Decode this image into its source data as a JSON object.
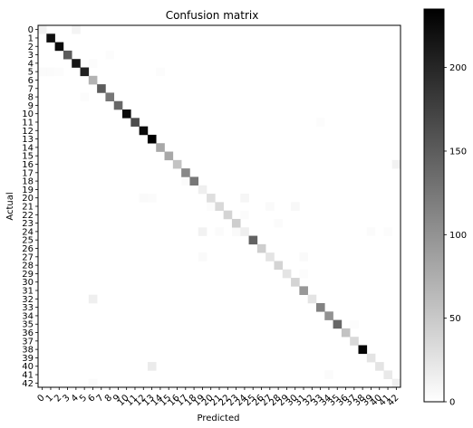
{
  "chart_data": {
    "type": "heatmap",
    "title": "Confusion matrix",
    "xlabel": "Predicted",
    "ylabel": "Actual",
    "labels": [
      "0",
      "1",
      "2",
      "3",
      "4",
      "5",
      "6",
      "7",
      "8",
      "9",
      "10",
      "11",
      "12",
      "13",
      "14",
      "15",
      "16",
      "17",
      "18",
      "19",
      "20",
      "21",
      "22",
      "23",
      "24",
      "25",
      "26",
      "27",
      "28",
      "29",
      "30",
      "31",
      "32",
      "33",
      "34",
      "35",
      "36",
      "37",
      "38",
      "39",
      "40",
      "41",
      "42"
    ],
    "diagonal": [
      12,
      220,
      225,
      150,
      215,
      205,
      70,
      150,
      125,
      140,
      225,
      165,
      225,
      235,
      80,
      80,
      55,
      110,
      125,
      15,
      30,
      35,
      40,
      45,
      15,
      145,
      45,
      25,
      40,
      25,
      40,
      95,
      25,
      115,
      100,
      140,
      55,
      35,
      230,
      25,
      25,
      20,
      15
    ],
    "off_diagonal": [
      {
        "actual": 0,
        "predicted": 4,
        "value": 10
      },
      {
        "actual": 5,
        "predicted": 0,
        "value": 4
      },
      {
        "actual": 5,
        "predicted": 1,
        "value": 4
      },
      {
        "actual": 5,
        "predicted": 2,
        "value": 3
      },
      {
        "actual": 5,
        "predicted": 14,
        "value": 3
      },
      {
        "actual": 4,
        "predicted": 6,
        "value": 3
      },
      {
        "actual": 8,
        "predicted": 5,
        "value": 3
      },
      {
        "actual": 3,
        "predicted": 8,
        "value": 3
      },
      {
        "actual": 16,
        "predicted": 42,
        "value": 12
      },
      {
        "actual": 20,
        "predicted": 12,
        "value": 5
      },
      {
        "actual": 20,
        "predicted": 13,
        "value": 4
      },
      {
        "actual": 20,
        "predicted": 24,
        "value": 8
      },
      {
        "actual": 21,
        "predicted": 30,
        "value": 6
      },
      {
        "actual": 21,
        "predicted": 27,
        "value": 5
      },
      {
        "actual": 21,
        "predicted": 20,
        "value": 3
      },
      {
        "actual": 22,
        "predicted": 24,
        "value": 4
      },
      {
        "actual": 23,
        "predicted": 28,
        "value": 4
      },
      {
        "actual": 24,
        "predicted": 19,
        "value": 12
      },
      {
        "actual": 24,
        "predicted": 23,
        "value": 5
      },
      {
        "actual": 24,
        "predicted": 21,
        "value": 4
      },
      {
        "actual": 24,
        "predicted": 39,
        "value": 4
      },
      {
        "actual": 24,
        "predicted": 41,
        "value": 3
      },
      {
        "actual": 27,
        "predicted": 19,
        "value": 5
      },
      {
        "actual": 27,
        "predicted": 31,
        "value": 5
      },
      {
        "actual": 32,
        "predicted": 6,
        "value": 15
      },
      {
        "actual": 40,
        "predicted": 13,
        "value": 18
      },
      {
        "actual": 41,
        "predicted": 34,
        "value": 4
      },
      {
        "actual": 42,
        "predicted": 6,
        "value": 4
      },
      {
        "actual": 18,
        "predicted": 17,
        "value": 4
      },
      {
        "actual": 11,
        "predicted": 33,
        "value": 3
      },
      {
        "actual": 35,
        "predicted": 37,
        "value": 3
      },
      {
        "actual": 29,
        "predicted": 31,
        "value": 3
      }
    ],
    "colorbar": {
      "min": 0,
      "max": 235,
      "ticks": [
        0,
        50,
        100,
        150,
        200
      ],
      "colormap": "Greys",
      "low_color": "#ffffff",
      "high_color": "#000000"
    },
    "grid": false
  }
}
